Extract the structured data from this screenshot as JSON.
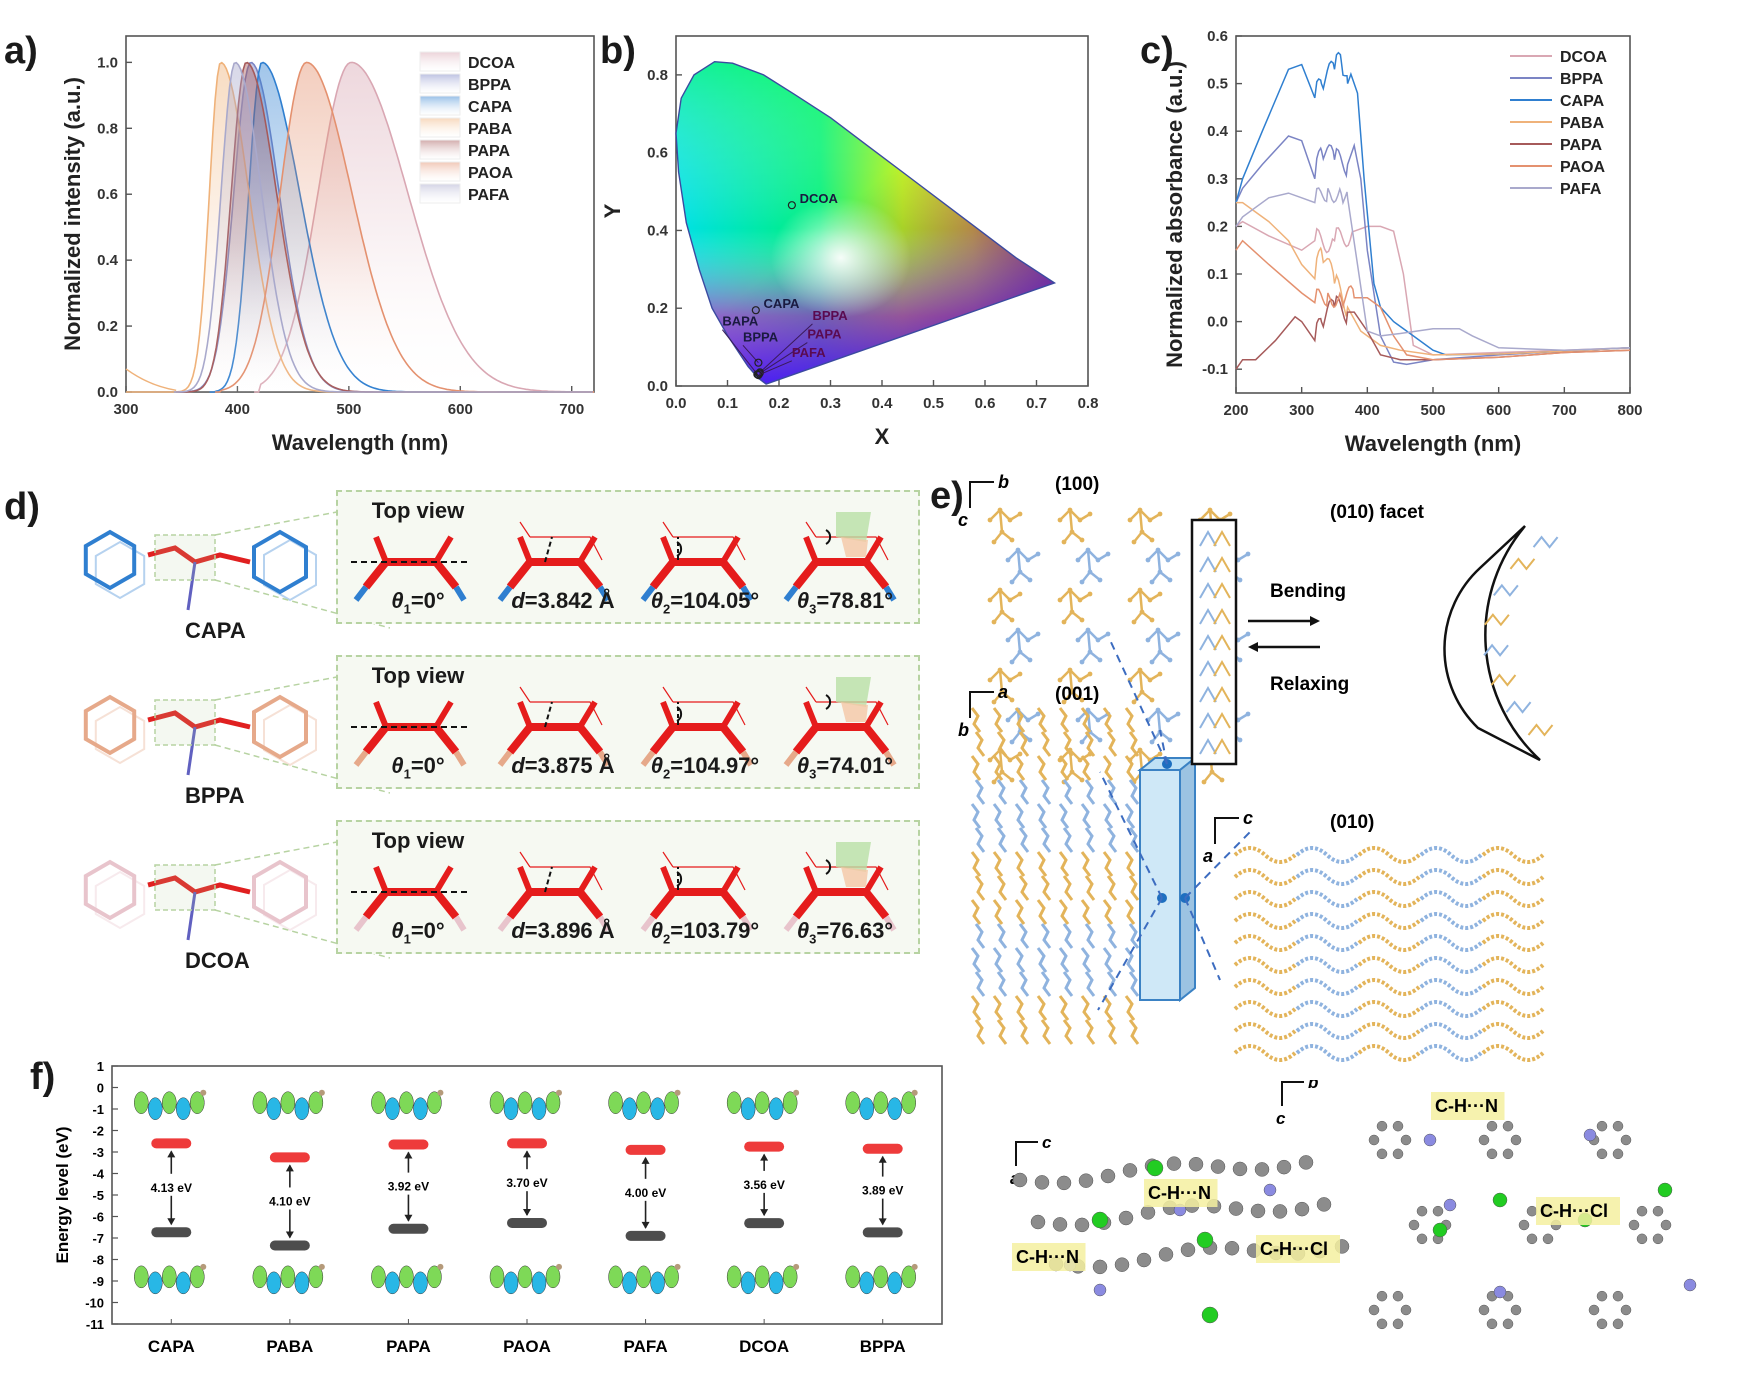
{
  "panels": {
    "a": "a)",
    "b": "b)",
    "c": "c)",
    "d": "d)",
    "e": "e)",
    "f": "f)"
  },
  "chart_data": [
    {
      "id": "a",
      "type": "area",
      "title": "",
      "xlabel": "Wavelength (nm)",
      "ylabel": "Normalized intensity (a.u.)",
      "xlim": [
        300,
        720
      ],
      "ylim": [
        0,
        1.08
      ],
      "xticks": [
        300,
        400,
        500,
        600,
        700
      ],
      "yticks": [
        "0.0",
        "0.2",
        "0.4",
        "0.6",
        "0.8",
        "1.0"
      ],
      "legend_position": "top-right",
      "series": [
        {
          "name": "DCOA",
          "color": "#d9a7b3",
          "peak_nm": 502,
          "onset_nm": 420,
          "fwhm_left": 35,
          "fwhm_right": 60
        },
        {
          "name": "BPPA",
          "color": "#7b84c4",
          "peak_nm": 412,
          "onset_nm": 350,
          "fwhm_left": 18,
          "fwhm_right": 30
        },
        {
          "name": "CAPA",
          "color": "#2f7fd0",
          "peak_nm": 422,
          "onset_nm": 380,
          "fwhm_left": 14,
          "fwhm_right": 40
        },
        {
          "name": "PABA",
          "color": "#efb27a",
          "peak_nm": 385,
          "onset_nm": 300,
          "fwhm_left": 12,
          "fwhm_right": 30
        },
        {
          "name": "PAPA",
          "color": "#a65a5a",
          "peak_nm": 408,
          "onset_nm": 350,
          "fwhm_left": 16,
          "fwhm_right": 32
        },
        {
          "name": "PAOA",
          "color": "#e4916f",
          "peak_nm": 462,
          "onset_nm": 385,
          "fwhm_left": 28,
          "fwhm_right": 48
        },
        {
          "name": "PAFA",
          "color": "#a9a9cc",
          "peak_nm": 398,
          "onset_nm": 348,
          "fwhm_left": 15,
          "fwhm_right": 28
        }
      ]
    },
    {
      "id": "b",
      "type": "scatter",
      "title": "",
      "xlabel": "X",
      "ylabel": "Y",
      "xlim": [
        0.0,
        0.8
      ],
      "ylim": [
        0.0,
        0.9
      ],
      "xticks": [
        "0.0",
        "0.1",
        "0.2",
        "0.3",
        "0.4",
        "0.5",
        "0.6",
        "0.7",
        "0.8"
      ],
      "yticks": [
        "0.0",
        "0.2",
        "0.4",
        "0.6",
        "0.8"
      ],
      "points": [
        {
          "name": "DCOA",
          "x": 0.225,
          "y": 0.465,
          "label_x": 0.24,
          "label_y": 0.47
        },
        {
          "name": "CAPA",
          "x": 0.155,
          "y": 0.195,
          "label_x": 0.17,
          "label_y": 0.2
        },
        {
          "name": "BAPA",
          "x": 0.158,
          "y": 0.03,
          "label_x": 0.09,
          "label_y": 0.155
        },
        {
          "name": "BPPA",
          "x": 0.16,
          "y": 0.06,
          "label_x": 0.13,
          "label_y": 0.115
        },
        {
          "name": "BPPA",
          "x": 0.163,
          "y": 0.035,
          "label_x": 0.265,
          "label_y": 0.17
        },
        {
          "name": "PAPA",
          "x": 0.162,
          "y": 0.032,
          "label_x": 0.255,
          "label_y": 0.122
        },
        {
          "name": "PAFA",
          "x": 0.16,
          "y": 0.028,
          "label_x": 0.225,
          "label_y": 0.075
        }
      ]
    },
    {
      "id": "c",
      "type": "line",
      "title": "",
      "xlabel": "Wavelength (nm)",
      "ylabel": "Normalized absorbance (a.u.)",
      "xlim": [
        200,
        800
      ],
      "ylim": [
        -0.15,
        0.6
      ],
      "xticks": [
        200,
        300,
        400,
        500,
        600,
        700,
        800
      ],
      "yticks": [
        "-0.1",
        "0.0",
        "0.1",
        "0.2",
        "0.3",
        "0.4",
        "0.5",
        "0.6"
      ],
      "legend_position": "top-right",
      "series": [
        {
          "name": "DCOA",
          "color": "#d9a7b3",
          "x": [
            200,
            210,
            250,
            300,
            320,
            350,
            380,
            400,
            420,
            440,
            455,
            470,
            500,
            600,
            700,
            800
          ],
          "y": [
            0.2,
            0.21,
            0.18,
            0.15,
            0.17,
            0.17,
            0.19,
            0.2,
            0.2,
            0.19,
            0.1,
            -0.05,
            -0.07,
            -0.065,
            -0.06,
            -0.055
          ]
        },
        {
          "name": "BPPA",
          "color": "#7b84c4",
          "x": [
            200,
            210,
            240,
            280,
            300,
            320,
            330,
            350,
            370,
            380,
            390,
            400,
            420,
            440,
            460,
            500,
            600,
            700,
            800
          ],
          "y": [
            0.25,
            0.28,
            0.33,
            0.39,
            0.38,
            0.3,
            0.36,
            0.34,
            0.33,
            0.37,
            0.3,
            0.15,
            -0.03,
            -0.085,
            -0.09,
            -0.08,
            -0.07,
            -0.062,
            -0.055
          ]
        },
        {
          "name": "CAPA",
          "color": "#2f7fd0",
          "x": [
            200,
            210,
            240,
            280,
            300,
            320,
            330,
            350,
            360,
            370,
            375,
            385,
            395,
            410,
            420,
            440,
            470,
            500,
            520,
            600,
            700,
            800
          ],
          "y": [
            0.25,
            0.3,
            0.4,
            0.53,
            0.54,
            0.47,
            0.5,
            0.53,
            0.55,
            0.5,
            0.52,
            0.48,
            0.3,
            0.08,
            0.03,
            0.0,
            -0.03,
            -0.06,
            -0.07,
            -0.068,
            -0.062,
            -0.055
          ]
        },
        {
          "name": "PABA",
          "color": "#efb27a",
          "x": [
            200,
            210,
            250,
            280,
            300,
            320,
            330,
            350,
            370,
            390,
            400,
            420,
            450,
            500,
            600,
            700,
            800
          ],
          "y": [
            0.25,
            0.25,
            0.21,
            0.17,
            0.12,
            0.09,
            0.15,
            0.08,
            0.03,
            -0.02,
            -0.03,
            -0.05,
            -0.06,
            -0.07,
            -0.068,
            -0.062,
            -0.055
          ]
        },
        {
          "name": "PAPA",
          "color": "#a65a5a",
          "x": [
            200,
            210,
            230,
            260,
            290,
            300,
            320,
            330,
            350,
            370,
            380,
            400,
            420,
            450,
            500,
            600,
            700,
            800
          ],
          "y": [
            -0.1,
            -0.08,
            -0.08,
            -0.04,
            0.01,
            0.0,
            -0.04,
            0.0,
            0.03,
            0.02,
            0.02,
            -0.02,
            -0.07,
            -0.08,
            -0.08,
            -0.075,
            -0.065,
            -0.06
          ]
        },
        {
          "name": "PAOA",
          "color": "#e4916f",
          "x": [
            200,
            210,
            250,
            300,
            320,
            340,
            360,
            380,
            400,
            420,
            440,
            460,
            500,
            600,
            700,
            800
          ],
          "y": [
            0.15,
            0.17,
            0.12,
            0.06,
            0.04,
            0.06,
            0.05,
            0.05,
            0.05,
            0.03,
            -0.03,
            -0.07,
            -0.08,
            -0.075,
            -0.065,
            -0.06
          ]
        },
        {
          "name": "PAFA",
          "color": "#a9a9cc",
          "x": [
            200,
            210,
            250,
            280,
            300,
            320,
            340,
            360,
            370,
            385,
            400,
            420,
            450,
            500,
            540,
            560,
            600,
            700,
            800
          ],
          "y": [
            0.2,
            0.22,
            0.26,
            0.27,
            0.26,
            0.25,
            0.28,
            0.27,
            0.26,
            0.12,
            -0.02,
            -0.03,
            -0.025,
            -0.015,
            -0.015,
            -0.03,
            -0.055,
            -0.06,
            -0.055
          ]
        }
      ]
    },
    {
      "id": "f",
      "type": "bar",
      "title": "",
      "xlabel": "",
      "ylabel": "Energy level (eV)",
      "ylim": [
        -11,
        1
      ],
      "yticks": [
        "1",
        "0",
        "-1",
        "-2",
        "-3",
        "-4",
        "-5",
        "-6",
        "-7",
        "-8",
        "-9",
        "-10",
        "-11"
      ],
      "categories": [
        "CAPA",
        "PABA",
        "PAPA",
        "PAOA",
        "PAFA",
        "DCOA",
        "BPPA"
      ],
      "series": [
        {
          "name": "LUMO",
          "color": "#ee3b3b",
          "values": [
            -2.6,
            -3.25,
            -2.65,
            -2.6,
            -2.9,
            -2.75,
            -2.85
          ]
        },
        {
          "name": "HOMO",
          "color": "#4d4d4d",
          "values": [
            -6.73,
            -7.35,
            -6.57,
            -6.3,
            -6.9,
            -6.31,
            -6.74
          ]
        }
      ],
      "gap_labels": [
        "4.13 eV",
        "4.10 eV",
        "3.92 eV",
        "3.70 eV",
        "4.00 eV",
        "3.56 eV",
        "3.89 eV"
      ]
    }
  ],
  "panel_d": {
    "rows": [
      {
        "molecule": "CAPA",
        "accent": "#2f7fd0",
        "top_view": "Top view",
        "theta1": "=0°",
        "d": "=3.842 Å",
        "theta2": "=104.05°",
        "theta3": "=78.81°"
      },
      {
        "molecule": "BPPA",
        "accent": "#e6a98a",
        "top_view": "Top view",
        "theta1": "=0°",
        "d": "=3.875 Å",
        "theta2": "=104.97°",
        "theta3": "=74.01°"
      },
      {
        "molecule": "DCOA",
        "accent": "#e8c4cc",
        "top_view": "Top view",
        "theta1": "=0°",
        "d": "=3.896 Å",
        "theta2": "=103.79°",
        "theta3": "=76.63°"
      }
    ],
    "symbols": {
      "theta": "θ",
      "d": "d",
      "sub1": "1",
      "sub2": "2",
      "sub3": "3"
    }
  },
  "panel_e": {
    "facet_100": "(100)",
    "facet_001": "(001)",
    "facet_010": "(010)",
    "facet_title": "(010) facet",
    "bending": "Bending",
    "relaxing": "Relaxing",
    "axes": {
      "b": "b",
      "c": "c",
      "a": "a"
    },
    "colors": {
      "orange": "#e3b45a",
      "blue": "#8fb3df",
      "crystal": "#cfe8f7",
      "crystal_edge": "#3b82c4"
    }
  },
  "panel_g": {
    "interaction_cn": "C-H···N",
    "interaction_ccl": "C-H···Cl",
    "axes": {
      "c": "c",
      "a": "a",
      "b": "b"
    }
  }
}
